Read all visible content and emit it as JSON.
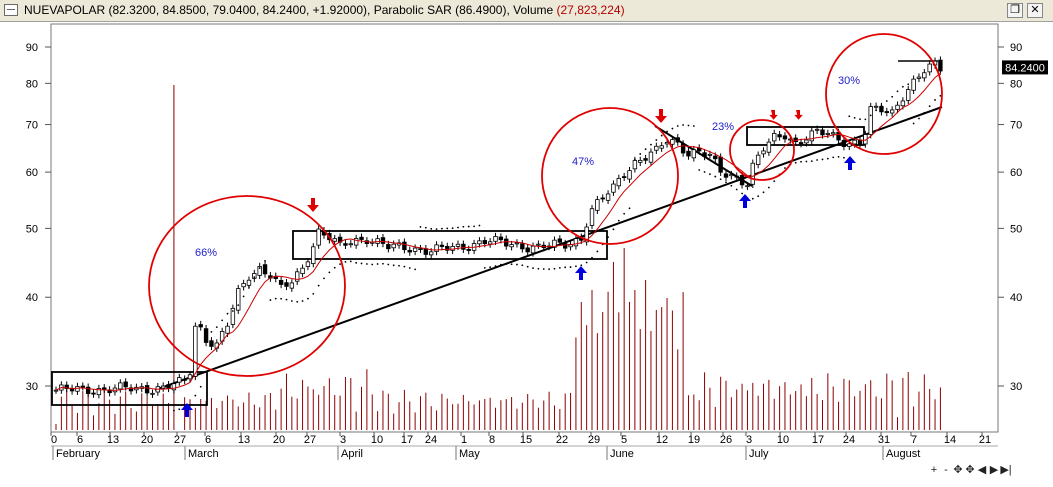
{
  "window": {
    "title_symbol": "NUEVAPOLAR",
    "title_ohlc": "(82.3200, 84.8500, 79.0400, 84.2400, +1.92000)",
    "title_sar": "Parabolic SAR (86.4900)",
    "title_volume_label": "Volume",
    "title_volume_value": "(27,823,224)",
    "restore_icon": "restore-window-icon",
    "close_icon": "close-window-icon"
  },
  "price_label": "84.2400",
  "nav_icons": [
    "zoom-in-icon",
    "zoom-out-icon",
    "pan-icon",
    "fit-icon",
    "scroll-left-icon",
    "scroll-right-icon",
    "scroll-end-icon"
  ],
  "nav_glyphs": [
    "+",
    "-",
    "✥",
    "✥",
    "◀",
    "▶",
    "▶|"
  ],
  "colors": {
    "candle": "#000000",
    "volume": "#8b0000",
    "ma": "#cc0000",
    "sar": "#000000",
    "circle": "#e00000",
    "down_arrow": "#e00000",
    "up_arrow": "#0000dd",
    "annotation": "#2020cc"
  },
  "chart_data": {
    "type": "candlestick",
    "title": "",
    "y_scale": "log",
    "y_ticks": [
      30,
      40,
      50,
      60,
      70,
      80,
      90
    ],
    "ylim": [
      26.5,
      97
    ],
    "x_day_labels": [
      "0",
      "6",
      "13",
      "20",
      "27",
      "6",
      "13",
      "20",
      "27",
      "3",
      "10",
      "17",
      "24",
      "1",
      "8",
      "15",
      "22",
      "29",
      "5",
      "12",
      "19",
      "26",
      "3",
      "10",
      "17",
      "24",
      "31",
      "7",
      "14",
      "21"
    ],
    "x_month_labels": [
      "February",
      "March",
      "April",
      "May",
      "June",
      "July",
      "August"
    ],
    "last_close": 84.24,
    "annotations": [
      "66%",
      "47%",
      "23%",
      "30%"
    ]
  }
}
